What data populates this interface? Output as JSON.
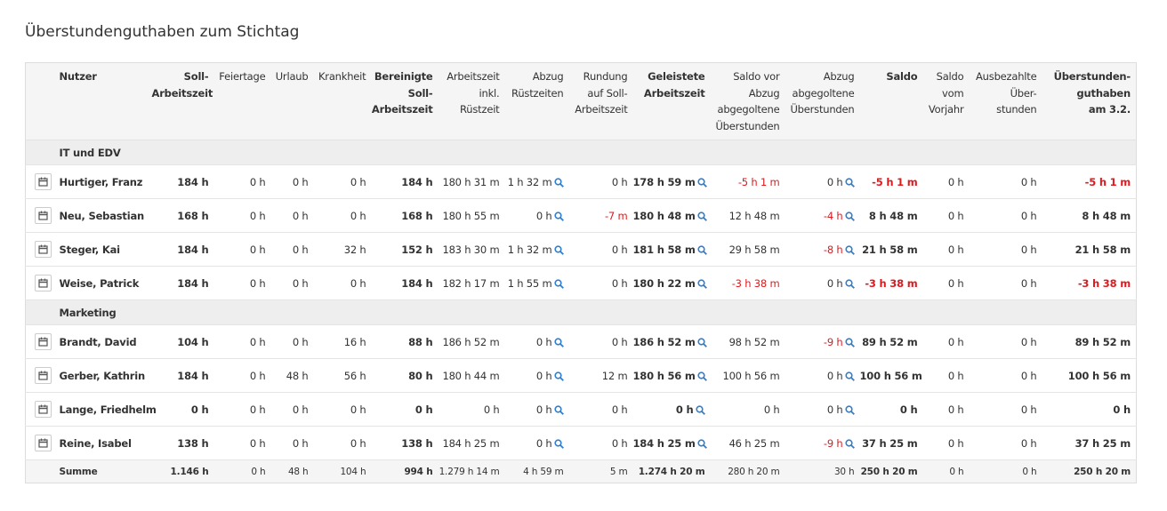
{
  "title": "Überstundenguthaben zum Stichtag",
  "table": {
    "header": [
      [
        "Nutzer"
      ],
      [
        "Soll-",
        "Arbeitszeit"
      ],
      [
        "Feiertage"
      ],
      [
        "Urlaub"
      ],
      [
        "Krankheit"
      ],
      [
        "Bereinigte",
        "Soll-",
        "Arbeitszeit"
      ],
      [
        "Arbeitszeit",
        "inkl.",
        "Rüstzeit"
      ],
      [
        "Abzug",
        "Rüstzeiten"
      ],
      [
        "Rundung",
        "auf Soll-",
        "Arbeitszeit"
      ],
      [
        "Geleistete",
        "Arbeitszeit"
      ],
      [
        "Saldo vor",
        "Abzug",
        "abgegoltene",
        "Überstunden"
      ],
      [
        "Abzug",
        "abgegoltene",
        "Überstunden"
      ],
      [
        "Saldo"
      ],
      [
        "Saldo",
        "vom",
        "Vorjahr"
      ],
      [
        "Ausbezahlte",
        "Über-",
        "stunden"
      ],
      [
        "Überstunden-",
        "guthaben",
        "am 3.2."
      ]
    ],
    "groups": [
      {
        "name": "IT und EDV",
        "rows": [
          {
            "user": "Hurtiger, Franz",
            "cells": [
              "184 h",
              "0 h",
              "0 h",
              "0 h",
              "184 h",
              "180 h 31 m",
              "1 h 32 m",
              "0 h",
              "178 h 59 m",
              "-5 h 1 m",
              "0 h",
              "-5 h 1 m",
              "0 h",
              "0 h",
              "-5 h 1 m"
            ]
          },
          {
            "user": "Neu, Sebastian",
            "cells": [
              "168 h",
              "0 h",
              "0 h",
              "0 h",
              "168 h",
              "180 h 55 m",
              "0 h",
              "-7 m",
              "180 h 48 m",
              "12 h 48 m",
              "-4 h",
              "8 h 48 m",
              "0 h",
              "0 h",
              "8 h 48 m"
            ]
          },
          {
            "user": "Steger, Kai",
            "cells": [
              "184 h",
              "0 h",
              "0 h",
              "32 h",
              "152 h",
              "183 h 30 m",
              "1 h 32 m",
              "0 h",
              "181 h 58 m",
              "29 h 58 m",
              "-8 h",
              "21 h 58 m",
              "0 h",
              "0 h",
              "21 h 58 m"
            ]
          },
          {
            "user": "Weise, Patrick",
            "cells": [
              "184 h",
              "0 h",
              "0 h",
              "0 h",
              "184 h",
              "182 h 17 m",
              "1 h 55 m",
              "0 h",
              "180 h 22 m",
              "-3 h 38 m",
              "0 h",
              "-3 h 38 m",
              "0 h",
              "0 h",
              "-3 h 38 m"
            ]
          }
        ]
      },
      {
        "name": "Marketing",
        "rows": [
          {
            "user": "Brandt, David",
            "cells": [
              "104 h",
              "0 h",
              "0 h",
              "16 h",
              "88 h",
              "186 h 52 m",
              "0 h",
              "0 h",
              "186 h 52 m",
              "98 h 52 m",
              "-9 h",
              "89 h 52 m",
              "0 h",
              "0 h",
              "89 h 52 m"
            ]
          },
          {
            "user": "Gerber, Kathrin",
            "cells": [
              "184 h",
              "0 h",
              "48 h",
              "56 h",
              "80 h",
              "180 h 44 m",
              "0 h",
              "12 m",
              "180 h 56 m",
              "100 h 56 m",
              "0 h",
              "100 h 56 m",
              "0 h",
              "0 h",
              "100 h 56 m"
            ]
          },
          {
            "user": "Lange, Friedhelm",
            "cells": [
              "0 h",
              "0 h",
              "0 h",
              "0 h",
              "0 h",
              "0 h",
              "0 h",
              "0 h",
              "0 h",
              "0 h",
              "0 h",
              "0 h",
              "0 h",
              "0 h",
              "0 h"
            ]
          },
          {
            "user": "Reine, Isabel",
            "cells": [
              "138 h",
              "0 h",
              "0 h",
              "0 h",
              "138 h",
              "184 h 25 m",
              "0 h",
              "0 h",
              "184 h 25 m",
              "46 h 25 m",
              "-9 h",
              "37 h 25 m",
              "0 h",
              "0 h",
              "37 h 25 m"
            ]
          }
        ]
      }
    ],
    "sum": {
      "label": "Summe",
      "cells": [
        "1.146 h",
        "0 h",
        "48 h",
        "104 h",
        "994 h",
        "1.279 h 14 m",
        "4 h 59 m",
        "5 m",
        "1.274 h 20 m",
        "280 h 20 m",
        "30 h",
        "250 h 20 m",
        "0 h",
        "0 h",
        "250 h 20 m"
      ]
    }
  }
}
